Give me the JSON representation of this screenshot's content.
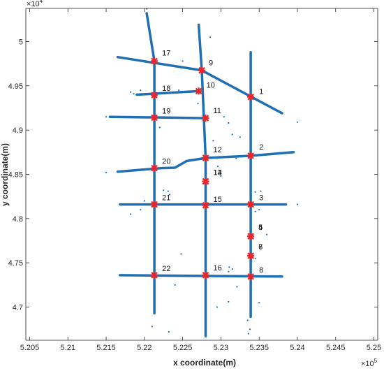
{
  "chart_data": {
    "type": "scatter",
    "title": "",
    "xlabel": "x coordinate(m)",
    "ylabel": "y coordinate(m)",
    "x_multiplier_label": "×10",
    "x_multiplier_exp": "5",
    "y_multiplier_label": "×10",
    "y_multiplier_exp": "4",
    "xlim": [
      5.2045,
      5.2505
    ],
    "ylim": [
      4.6625,
      5.0375
    ],
    "xticks": [
      5.205,
      5.21,
      5.215,
      5.22,
      5.225,
      5.23,
      5.235,
      5.24,
      5.245,
      5.25
    ],
    "xtick_labels": [
      "5.205",
      "5.21",
      "5.215",
      "5.22",
      "5.225",
      "5.23",
      "5.235",
      "5.24",
      "5.245",
      "5.25"
    ],
    "yticks": [
      4.7,
      4.75,
      4.8,
      4.85,
      4.9,
      4.95,
      5.0
    ],
    "ytick_labels": [
      "4.7",
      "4.75",
      "4.8",
      "4.85",
      "4.9",
      "4.95",
      "5"
    ],
    "grid": false,
    "colors": {
      "trajectory": "#1f6fb4",
      "node": "#e8262b",
      "axes": "#262626"
    },
    "roads": [
      [
        [
          5.2165,
          4.9825
        ],
        [
          5.2275,
          4.9675
        ],
        [
          5.238,
          4.919
        ]
      ],
      [
        [
          5.219,
          4.94
        ],
        [
          5.2271,
          4.944
        ]
      ],
      [
        [
          5.2155,
          4.915
        ],
        [
          5.228,
          4.9135
        ]
      ],
      [
        [
          5.2165,
          4.853
        ],
        [
          5.2222,
          4.857
        ],
        [
          5.224,
          4.8575
        ],
        [
          5.2255,
          4.865
        ],
        [
          5.228,
          4.8685
        ],
        [
          5.234,
          4.871
        ],
        [
          5.2395,
          4.875
        ]
      ],
      [
        [
          5.2168,
          4.816
        ],
        [
          5.2385,
          4.816
        ]
      ],
      [
        [
          5.2168,
          4.736
        ],
        [
          5.238,
          4.7345
        ]
      ],
      [
        [
          5.2203,
          5.032
        ],
        [
          5.2213,
          4.978
        ],
        [
          5.2213,
          4.693
        ]
      ],
      [
        [
          5.2271,
          5.019
        ],
        [
          5.2275,
          4.9675
        ],
        [
          5.228,
          4.8685
        ],
        [
          5.228,
          4.667
        ]
      ],
      [
        [
          5.2339,
          4.988
        ],
        [
          5.2339,
          4.9375
        ],
        [
          5.2339,
          4.689
        ]
      ]
    ],
    "scatter_points": [
      [
        5.2203,
        5.037
      ],
      [
        5.2182,
        4.943
      ],
      [
        5.2186,
        4.941
      ],
      [
        5.2195,
        4.945
      ],
      [
        5.215,
        4.915
      ],
      [
        5.2245,
        4.945
      ],
      [
        5.2243,
        4.942
      ],
      [
        5.227,
        4.93
      ],
      [
        5.231,
        4.908
      ],
      [
        5.2304,
        4.915
      ],
      [
        5.2325,
        4.892
      ],
      [
        5.2315,
        4.895
      ],
      [
        5.24,
        4.909
      ],
      [
        5.232,
        4.868
      ],
      [
        5.2296,
        4.859
      ],
      [
        5.23,
        4.848
      ],
      [
        5.215,
        4.852
      ],
      [
        5.2225,
        4.832
      ],
      [
        5.2231,
        4.831
      ],
      [
        5.2233,
        4.827
      ],
      [
        5.22,
        4.82
      ],
      [
        5.2182,
        4.805
      ],
      [
        5.2345,
        4.83
      ],
      [
        5.2352,
        4.831
      ],
      [
        5.235,
        4.81
      ],
      [
        5.24,
        4.816
      ],
      [
        5.2345,
        4.808
      ],
      [
        5.2345,
        4.755
      ],
      [
        5.234,
        4.752
      ],
      [
        5.2248,
        4.76
      ],
      [
        5.2311,
        4.745
      ],
      [
        5.2315,
        4.743
      ],
      [
        5.231,
        4.74
      ],
      [
        5.2321,
        4.723
      ],
      [
        5.224,
        4.725
      ],
      [
        5.2232,
        4.735
      ],
      [
        5.221,
        4.678
      ],
      [
        5.2232,
        4.672
      ],
      [
        5.2295,
        4.7
      ],
      [
        5.231,
        4.706
      ],
      [
        5.235,
        4.705
      ],
      [
        5.2335,
        4.685
      ],
      [
        5.2338,
        4.675
      ],
      [
        5.2336,
        4.67
      ],
      [
        5.2286,
        5.005
      ],
      [
        5.222,
        4.903
      ],
      [
        5.2195,
        4.81
      ],
      [
        5.225,
        4.978
      ],
      [
        5.229,
        4.888
      ],
      [
        5.236,
        4.782
      ]
    ],
    "nodes": [
      {
        "label": "1",
        "x": 5.2339,
        "y": 4.9375,
        "label_dx": 12,
        "label_dy": -4
      },
      {
        "label": "2",
        "x": 5.2339,
        "y": 4.871,
        "label_dx": 12,
        "label_dy": -9
      },
      {
        "label": "3",
        "x": 5.2339,
        "y": 4.816,
        "label_dx": 12,
        "label_dy": -6
      },
      {
        "label": "4",
        "x": 5.2339,
        "y": 4.78,
        "label_dx": 11,
        "label_dy": -9
      },
      {
        "label": "5",
        "x": 5.2339,
        "y": 4.78,
        "label_dx": 11,
        "label_dy": -9
      },
      {
        "label": "6",
        "x": 5.2339,
        "y": 4.758,
        "label_dx": 11,
        "label_dy": -9
      },
      {
        "label": "7",
        "x": 5.2339,
        "y": 4.758,
        "label_dx": 11,
        "label_dy": -9
      },
      {
        "label": "8",
        "x": 5.2339,
        "y": 4.7345,
        "label_dx": 12,
        "label_dy": -6
      },
      {
        "label": "9",
        "x": 5.2275,
        "y": 4.9675,
        "label_dx": 10,
        "label_dy": -7
      },
      {
        "label": "10",
        "x": 5.2271,
        "y": 4.944,
        "label_dx": 11,
        "label_dy": -5
      },
      {
        "label": "11",
        "x": 5.228,
        "y": 4.9135,
        "label_dx": 11,
        "label_dy": -7
      },
      {
        "label": "12",
        "x": 5.228,
        "y": 4.8685,
        "label_dx": 11,
        "label_dy": -8
      },
      {
        "label": "13",
        "x": 5.228,
        "y": 4.842,
        "label_dx": 11,
        "label_dy": -9
      },
      {
        "label": "14",
        "x": 5.228,
        "y": 4.842,
        "label_dx": 11,
        "label_dy": -9
      },
      {
        "label": "15",
        "x": 5.228,
        "y": 4.815,
        "label_dx": 11,
        "label_dy": -5
      },
      {
        "label": "16",
        "x": 5.228,
        "y": 4.736,
        "label_dx": 11,
        "label_dy": -7
      },
      {
        "label": "17",
        "x": 5.2213,
        "y": 4.978,
        "label_dx": 11,
        "label_dy": -8
      },
      {
        "label": "18",
        "x": 5.2213,
        "y": 4.9395,
        "label_dx": 11,
        "label_dy": -6
      },
      {
        "label": "19",
        "x": 5.2213,
        "y": 4.914,
        "label_dx": 11,
        "label_dy": -6
      },
      {
        "label": "20",
        "x": 5.2213,
        "y": 4.857,
        "label_dx": 11,
        "label_dy": -6
      },
      {
        "label": "21",
        "x": 5.2213,
        "y": 4.816,
        "label_dx": 11,
        "label_dy": -6
      },
      {
        "label": "22",
        "x": 5.2213,
        "y": 4.736,
        "label_dx": 11,
        "label_dy": -6
      }
    ]
  }
}
